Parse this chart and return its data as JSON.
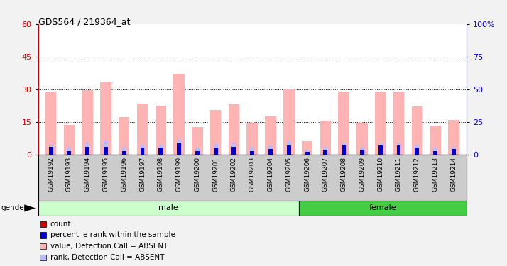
{
  "title": "GDS564 / 219364_at",
  "samples": [
    "GSM19192",
    "GSM19193",
    "GSM19194",
    "GSM19195",
    "GSM19196",
    "GSM19197",
    "GSM19198",
    "GSM19199",
    "GSM19200",
    "GSM19201",
    "GSM19202",
    "GSM19203",
    "GSM19204",
    "GSM19205",
    "GSM19206",
    "GSM19207",
    "GSM19208",
    "GSM19209",
    "GSM19210",
    "GSM19211",
    "GSM19212",
    "GSM19213",
    "GSM19214"
  ],
  "values_absent": [
    28.5,
    13.5,
    29.5,
    33.0,
    17.0,
    23.5,
    22.5,
    37.0,
    12.5,
    20.5,
    23.0,
    14.5,
    17.5,
    30.0,
    6.0,
    15.5,
    29.0,
    14.5,
    29.0,
    29.0,
    22.0,
    13.0,
    16.0
  ],
  "rank_absent": [
    4.0,
    3.5,
    5.5,
    6.5,
    3.5,
    4.5,
    4.5,
    7.0,
    3.0,
    5.0,
    5.0,
    3.5,
    4.0,
    6.0,
    2.0,
    3.5,
    5.5,
    3.5,
    5.5,
    5.5,
    4.5,
    3.0,
    3.5
  ],
  "count_values": [
    3.5,
    1.5,
    3.5,
    3.5,
    1.5,
    3.0,
    3.0,
    5.0,
    1.5,
    3.0,
    3.5,
    1.5,
    2.5,
    4.0,
    1.0,
    2.0,
    4.0,
    2.0,
    4.0,
    4.0,
    3.0,
    1.5,
    2.5
  ],
  "percentile_rank": [
    3.5,
    1.5,
    3.5,
    3.5,
    1.5,
    3.0,
    3.0,
    5.0,
    1.5,
    3.0,
    3.5,
    1.5,
    2.5,
    4.0,
    1.0,
    2.0,
    4.0,
    2.0,
    4.0,
    4.0,
    3.0,
    1.5,
    2.5
  ],
  "male_samples": 14,
  "female_samples": 9,
  "ylim_left": [
    0,
    60
  ],
  "ylim_right": [
    0,
    100
  ],
  "yticks_left": [
    0,
    15,
    30,
    45,
    60
  ],
  "yticks_right": [
    0,
    25,
    50,
    75,
    100
  ],
  "grid_lines": [
    15,
    30,
    45
  ],
  "bar_color_absent": "#FFB3B3",
  "rank_color_absent": "#BBBBFF",
  "count_color": "#CC0000",
  "percentile_color": "#0000CC",
  "male_light_color": "#CCFFCC",
  "female_dark_color": "#44CC44",
  "tick_bg_color": "#CCCCCC",
  "plot_bg": "#FFFFFF",
  "fig_bg": "#F2F2F2",
  "legend_items": [
    {
      "color": "#CC0000",
      "label": "count"
    },
    {
      "color": "#0000CC",
      "label": "percentile rank within the sample"
    },
    {
      "color": "#FFB3B3",
      "label": "value, Detection Call = ABSENT"
    },
    {
      "color": "#BBBBFF",
      "label": "rank, Detection Call = ABSENT"
    }
  ]
}
